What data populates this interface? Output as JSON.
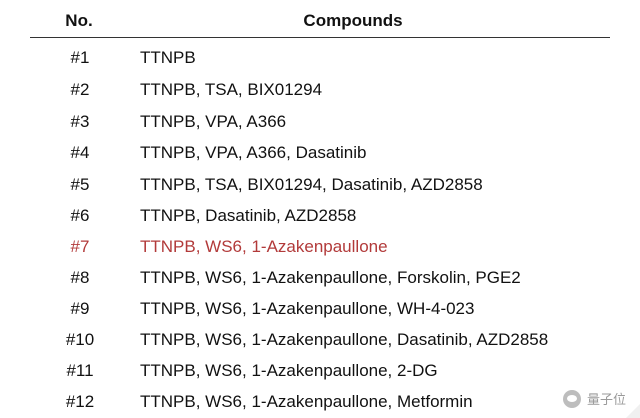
{
  "table": {
    "headers": {
      "no": "No.",
      "compounds": "Compounds"
    },
    "rows": [
      {
        "no": "#1",
        "compounds": "TTNPB"
      },
      {
        "no": "#2",
        "compounds": "TTNPB, TSA, BIX01294"
      },
      {
        "no": "#3",
        "compounds": "TTNPB, VPA, A366"
      },
      {
        "no": "#4",
        "compounds": "TTNPB, VPA, A366, Dasatinib"
      },
      {
        "no": "#5",
        "compounds": "TTNPB, TSA, BIX01294, Dasatinib, AZD2858"
      },
      {
        "no": "#6",
        "compounds": "TTNPB, Dasatinib, AZD2858"
      },
      {
        "no": "#7",
        "compounds": "TTNPB, WS6, 1-Azakenpaullone"
      },
      {
        "no": "#8",
        "compounds": "TTNPB, WS6, 1-Azakenpaullone, Forskolin, PGE2"
      },
      {
        "no": "#9",
        "compounds": "TTNPB, WS6, 1-Azakenpaullone, WH-4-023"
      },
      {
        "no": "#10",
        "compounds": "TTNPB, WS6, 1-Azakenpaullone, Dasatinib, AZD2858"
      },
      {
        "no": "#11",
        "compounds": "TTNPB, WS6, 1-Azakenpaullone, 2-DG"
      },
      {
        "no": "#12",
        "compounds": "TTNPB, WS6, 1-Azakenpaullone, Metformin"
      }
    ],
    "highlight_color": "#b23a3a"
  },
  "watermark": {
    "text": "量子位",
    "icon": "wechat-icon"
  }
}
